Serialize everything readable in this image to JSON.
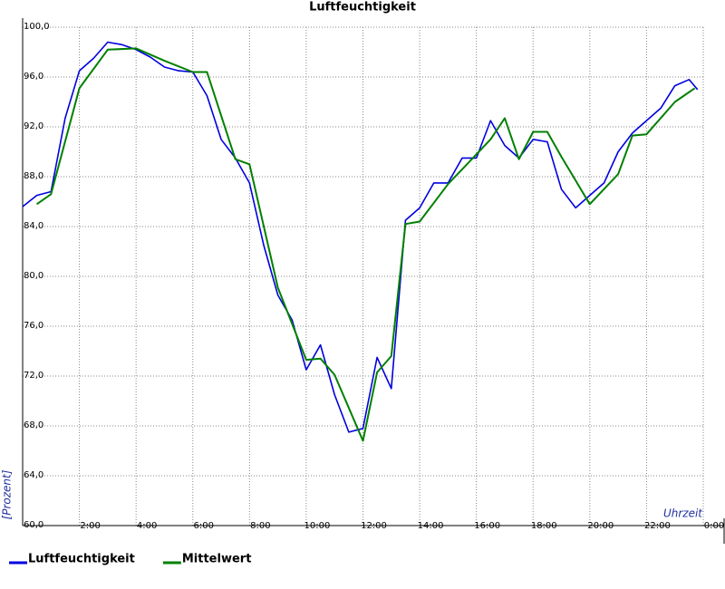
{
  "chart_data": {
    "type": "line",
    "title": "Luftfeuchtigkeit",
    "y_label": "[Prozent]",
    "x_label": "Uhrzeit",
    "xlim": [
      0,
      24
    ],
    "xticks": [
      {
        "value": 2,
        "label": "2:00"
      },
      {
        "value": 4,
        "label": "4:00"
      },
      {
        "value": 6,
        "label": "6:00"
      },
      {
        "value": 8,
        "label": "8:00"
      },
      {
        "value": 10,
        "label": "10:00"
      },
      {
        "value": 12,
        "label": "12:00"
      },
      {
        "value": 14,
        "label": "14:00"
      },
      {
        "value": 16,
        "label": "16:00"
      },
      {
        "value": 18,
        "label": "18:00"
      },
      {
        "value": 20,
        "label": "20:00"
      },
      {
        "value": 22,
        "label": "22:00"
      },
      {
        "value": 24,
        "label": "0:00"
      }
    ],
    "ylim": [
      60,
      100
    ],
    "yticks": [
      {
        "value": 60,
        "label": "60,0"
      },
      {
        "value": 64,
        "label": "64,0"
      },
      {
        "value": 68,
        "label": "68,0"
      },
      {
        "value": 72,
        "label": "72,0"
      },
      {
        "value": 76,
        "label": "76,0"
      },
      {
        "value": 80,
        "label": "80,0"
      },
      {
        "value": 84,
        "label": "84,0"
      },
      {
        "value": 88,
        "label": "88,0"
      },
      {
        "value": 92,
        "label": "92,0"
      },
      {
        "value": 96,
        "label": "96,0"
      },
      {
        "value": 100,
        "label": "100,0"
      }
    ],
    "grid": true,
    "series": [
      {
        "name": "Luftfeuchtigkeit",
        "color": "#0000e0",
        "x": [
          0,
          0.5,
          1,
          1.5,
          2,
          2.5,
          3,
          3.5,
          4,
          4.5,
          5,
          5.5,
          6,
          6.5,
          7,
          7.5,
          8,
          8.5,
          9,
          9.5,
          10,
          10.5,
          11,
          11.5,
          12,
          12.5,
          13,
          13.5,
          14,
          14.5,
          15,
          15.5,
          16,
          16.5,
          17,
          17.5,
          18,
          18.5,
          19,
          19.5,
          20,
          20.5,
          21,
          21.5,
          22,
          22.5,
          23,
          23.5,
          23.8
        ],
        "values": [
          85.6,
          86.5,
          86.8,
          92.7,
          96.5,
          97.5,
          98.8,
          98.6,
          98.2,
          97.6,
          96.8,
          96.5,
          96.4,
          94.5,
          91,
          89.5,
          87.5,
          82.5,
          78.5,
          76.5,
          72.5,
          74.5,
          70.5,
          67.5,
          67.8,
          73.5,
          71,
          84.5,
          85.5,
          87.5,
          87.5,
          89.5,
          89.5,
          92.5,
          90.5,
          89.5,
          91,
          90.8,
          87,
          85.5,
          86.5,
          87.5,
          90,
          91.5,
          92.5,
          93.5,
          95.3,
          95.8,
          95
        ]
      },
      {
        "name": "Mittelwert",
        "color": "#008000",
        "x": [
          0.5,
          1,
          2,
          3,
          4,
          5,
          6,
          6.5,
          7.5,
          8,
          9,
          10,
          10.5,
          11,
          12,
          12.5,
          13,
          13.5,
          14,
          15,
          16,
          16.5,
          17,
          17.5,
          18,
          18.5,
          19,
          20,
          21,
          21.5,
          22,
          23,
          23.7
        ],
        "values": [
          85.8,
          86.6,
          95.1,
          98.2,
          98.3,
          97.3,
          96.4,
          96.4,
          89.4,
          89,
          79.1,
          73.3,
          73.4,
          72.1,
          66.8,
          72.3,
          73.6,
          84.2,
          84.4,
          87.4,
          89.8,
          91,
          92.7,
          89.4,
          91.6,
          91.6,
          89.6,
          85.8,
          88.2,
          91.3,
          91.4,
          94,
          95.1
        ]
      }
    ]
  }
}
